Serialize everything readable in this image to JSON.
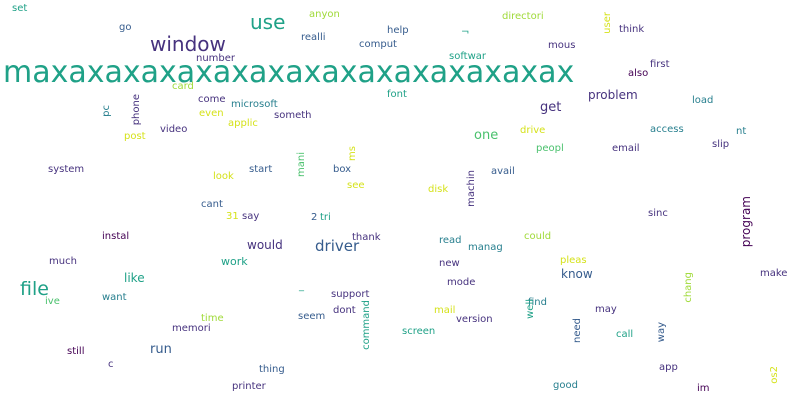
{
  "colors": {
    "dark_purple": "#440154",
    "indigo": "#46327e",
    "blue": "#365c8d",
    "steel": "#277f8e",
    "teal": "#1fa187",
    "green": "#4ac16d",
    "lime": "#a0da39",
    "yellow": "#d5e21a"
  },
  "words": [
    {
      "text": "maxaxaxaxaxaxaxaxaxaxaxaxaxaxax",
      "color": "teal",
      "size": 30,
      "vertical": false
    },
    {
      "text": "window",
      "color": "indigo",
      "size": 20,
      "vertical": false
    },
    {
      "text": "use",
      "color": "teal",
      "size": 20,
      "vertical": false
    },
    {
      "text": "file",
      "color": "teal",
      "size": 19,
      "vertical": false
    },
    {
      "text": "driver",
      "color": "blue",
      "size": 15,
      "vertical": false
    },
    {
      "text": "problem",
      "color": "indigo",
      "size": 12,
      "vertical": false
    },
    {
      "text": "get",
      "color": "indigo",
      "size": 13,
      "vertical": false
    },
    {
      "text": "one",
      "color": "green",
      "size": 13,
      "vertical": false
    },
    {
      "text": "would",
      "color": "indigo",
      "size": 12,
      "vertical": false
    },
    {
      "text": "like",
      "color": "teal",
      "size": 12,
      "vertical": false
    },
    {
      "text": "work",
      "color": "teal",
      "size": 11,
      "vertical": false
    },
    {
      "text": "run",
      "color": "blue",
      "size": 13,
      "vertical": false
    },
    {
      "text": "know",
      "color": "blue",
      "size": 12,
      "vertical": false
    },
    {
      "text": "program",
      "color": "dark_purple",
      "size": 12,
      "vertical": true
    },
    {
      "text": "set",
      "color": "teal",
      "size": 10,
      "vertical": false
    },
    {
      "text": "go",
      "color": "blue",
      "size": 10,
      "vertical": false
    },
    {
      "text": "anyon",
      "color": "lime",
      "size": 10,
      "vertical": false
    },
    {
      "text": "realli",
      "color": "blue",
      "size": 10,
      "vertical": false
    },
    {
      "text": "help",
      "color": "blue",
      "size": 10,
      "vertical": false
    },
    {
      "text": "comput",
      "color": "blue",
      "size": 10,
      "vertical": false
    },
    {
      "text": "directori",
      "color": "lime",
      "size": 10,
      "vertical": false
    },
    {
      "text": "user",
      "color": "yellow",
      "size": 10,
      "vertical": true
    },
    {
      "text": "think",
      "color": "indigo",
      "size": 10,
      "vertical": false
    },
    {
      "text": "mous",
      "color": "indigo",
      "size": 10,
      "vertical": false
    },
    {
      "text": "softwar",
      "color": "teal",
      "size": 10,
      "vertical": false
    },
    {
      "text": "first",
      "color": "indigo",
      "size": 10,
      "vertical": false
    },
    {
      "text": "also",
      "color": "dark_purple",
      "size": 10,
      "vertical": false
    },
    {
      "text": "number",
      "color": "indigo",
      "size": 10,
      "vertical": false
    },
    {
      "text": "card",
      "color": "lime",
      "size": 10,
      "vertical": false
    },
    {
      "text": "font",
      "color": "teal",
      "size": 10,
      "vertical": false
    },
    {
      "text": "load",
      "color": "steel",
      "size": 10,
      "vertical": false
    },
    {
      "text": "come",
      "color": "indigo",
      "size": 10,
      "vertical": false
    },
    {
      "text": "microsoft",
      "color": "steel",
      "size": 10,
      "vertical": false
    },
    {
      "text": "even",
      "color": "yellow",
      "size": 10,
      "vertical": false
    },
    {
      "text": "applic",
      "color": "yellow",
      "size": 10,
      "vertical": false
    },
    {
      "text": "someth",
      "color": "indigo",
      "size": 10,
      "vertical": false
    },
    {
      "text": "pc",
      "color": "steel",
      "size": 10,
      "vertical": true
    },
    {
      "text": "phone",
      "color": "indigo",
      "size": 10,
      "vertical": true
    },
    {
      "text": "video",
      "color": "indigo",
      "size": 10,
      "vertical": false
    },
    {
      "text": "post",
      "color": "yellow",
      "size": 10,
      "vertical": false
    },
    {
      "text": "access",
      "color": "steel",
      "size": 10,
      "vertical": false
    },
    {
      "text": "nt",
      "color": "steel",
      "size": 10,
      "vertical": false
    },
    {
      "text": "drive",
      "color": "yellow",
      "size": 10,
      "vertical": false
    },
    {
      "text": "slip",
      "color": "indigo",
      "size": 10,
      "vertical": false
    },
    {
      "text": "peopl",
      "color": "green",
      "size": 10,
      "vertical": false
    },
    {
      "text": "email",
      "color": "indigo",
      "size": 10,
      "vertical": false
    },
    {
      "text": "ms",
      "color": "yellow",
      "size": 10,
      "vertical": true
    },
    {
      "text": "system",
      "color": "indigo",
      "size": 10,
      "vertical": false
    },
    {
      "text": "mani",
      "color": "green",
      "size": 10,
      "vertical": true
    },
    {
      "text": "box",
      "color": "blue",
      "size": 10,
      "vertical": false
    },
    {
      "text": "start",
      "color": "blue",
      "size": 10,
      "vertical": false
    },
    {
      "text": "avail",
      "color": "blue",
      "size": 10,
      "vertical": false
    },
    {
      "text": "look",
      "color": "yellow",
      "size": 10,
      "vertical": false
    },
    {
      "text": "see",
      "color": "yellow",
      "size": 10,
      "vertical": false
    },
    {
      "text": "disk",
      "color": "yellow",
      "size": 10,
      "vertical": false
    },
    {
      "text": "machin",
      "color": "indigo",
      "size": 10,
      "vertical": true
    },
    {
      "text": "cant",
      "color": "blue",
      "size": 10,
      "vertical": false
    },
    {
      "text": "sinc",
      "color": "indigo",
      "size": 10,
      "vertical": false
    },
    {
      "text": "31",
      "color": "yellow",
      "size": 10,
      "vertical": false
    },
    {
      "text": "say",
      "color": "indigo",
      "size": 10,
      "vertical": false
    },
    {
      "text": "2",
      "color": "blue",
      "size": 10,
      "vertical": false
    },
    {
      "text": "tri",
      "color": "teal",
      "size": 10,
      "vertical": false
    },
    {
      "text": "instal",
      "color": "dark_purple",
      "size": 10,
      "vertical": false
    },
    {
      "text": "thank",
      "color": "indigo",
      "size": 10,
      "vertical": false
    },
    {
      "text": "read",
      "color": "steel",
      "size": 10,
      "vertical": false
    },
    {
      "text": "could",
      "color": "lime",
      "size": 10,
      "vertical": false
    },
    {
      "text": "manag",
      "color": "steel",
      "size": 10,
      "vertical": false
    },
    {
      "text": "much",
      "color": "indigo",
      "size": 10,
      "vertical": false
    },
    {
      "text": "new",
      "color": "indigo",
      "size": 10,
      "vertical": false
    },
    {
      "text": "pleas",
      "color": "yellow",
      "size": 10,
      "vertical": false
    },
    {
      "text": "make",
      "color": "indigo",
      "size": 10,
      "vertical": false
    },
    {
      "text": "want",
      "color": "steel",
      "size": 10,
      "vertical": false
    },
    {
      "text": "ive",
      "color": "green",
      "size": 10,
      "vertical": false
    },
    {
      "text": "_",
      "color": "teal",
      "size": 10,
      "vertical": false
    },
    {
      "text": "support",
      "color": "indigo",
      "size": 10,
      "vertical": false
    },
    {
      "text": "mode",
      "color": "indigo",
      "size": 10,
      "vertical": false
    },
    {
      "text": "find",
      "color": "steel",
      "size": 10,
      "vertical": false
    },
    {
      "text": "chang",
      "color": "lime",
      "size": 10,
      "vertical": true
    },
    {
      "text": "mail",
      "color": "yellow",
      "size": 10,
      "vertical": false
    },
    {
      "text": "dont",
      "color": "indigo",
      "size": 10,
      "vertical": false
    },
    {
      "text": "seem",
      "color": "blue",
      "size": 10,
      "vertical": false
    },
    {
      "text": "version",
      "color": "indigo",
      "size": 10,
      "vertical": false
    },
    {
      "text": "well",
      "color": "teal",
      "size": 10,
      "vertical": true
    },
    {
      "text": "may",
      "color": "indigo",
      "size": 10,
      "vertical": false
    },
    {
      "text": "time",
      "color": "lime",
      "size": 10,
      "vertical": false
    },
    {
      "text": "memori",
      "color": "indigo",
      "size": 10,
      "vertical": false
    },
    {
      "text": "command",
      "color": "teal",
      "size": 10,
      "vertical": true
    },
    {
      "text": "screen",
      "color": "teal",
      "size": 10,
      "vertical": false
    },
    {
      "text": "need",
      "color": "blue",
      "size": 10,
      "vertical": true
    },
    {
      "text": "call",
      "color": "teal",
      "size": 10,
      "vertical": false
    },
    {
      "text": "way",
      "color": "blue",
      "size": 10,
      "vertical": true
    },
    {
      "text": "still",
      "color": "dark_purple",
      "size": 10,
      "vertical": false
    },
    {
      "text": "c",
      "color": "indigo",
      "size": 10,
      "vertical": false
    },
    {
      "text": "thing",
      "color": "blue",
      "size": 10,
      "vertical": false
    },
    {
      "text": "app",
      "color": "indigo",
      "size": 10,
      "vertical": false
    },
    {
      "text": "os2",
      "color": "yellow",
      "size": 10,
      "vertical": true
    },
    {
      "text": "printer",
      "color": "indigo",
      "size": 10,
      "vertical": false
    },
    {
      "text": "good",
      "color": "steel",
      "size": 10,
      "vertical": false
    },
    {
      "text": "im",
      "color": "dark_purple",
      "size": 10,
      "vertical": false
    },
    {
      "text": "¬",
      "color": "teal",
      "size": 10,
      "vertical": false
    }
  ]
}
